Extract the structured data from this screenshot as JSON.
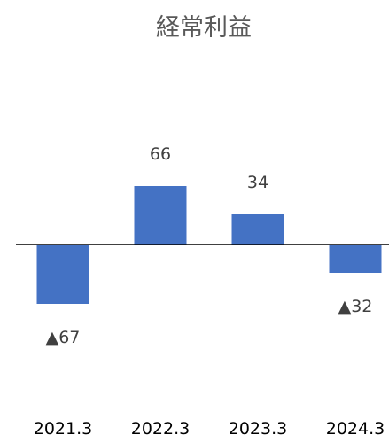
{
  "chart_data": {
    "type": "bar",
    "title": "経常利益",
    "categories": [
      "2021.3",
      "2022.3",
      "2023.3",
      "2024.3"
    ],
    "values": [
      -67,
      66,
      34,
      -32
    ],
    "data_labels": [
      "▲67",
      "66",
      "34",
      "▲32"
    ],
    "xlabel": "",
    "ylabel": "",
    "ylim": [
      -140,
      115
    ],
    "grid": false,
    "legend": "none",
    "bar_color": "#4472C4",
    "axis_color": "#000000"
  }
}
